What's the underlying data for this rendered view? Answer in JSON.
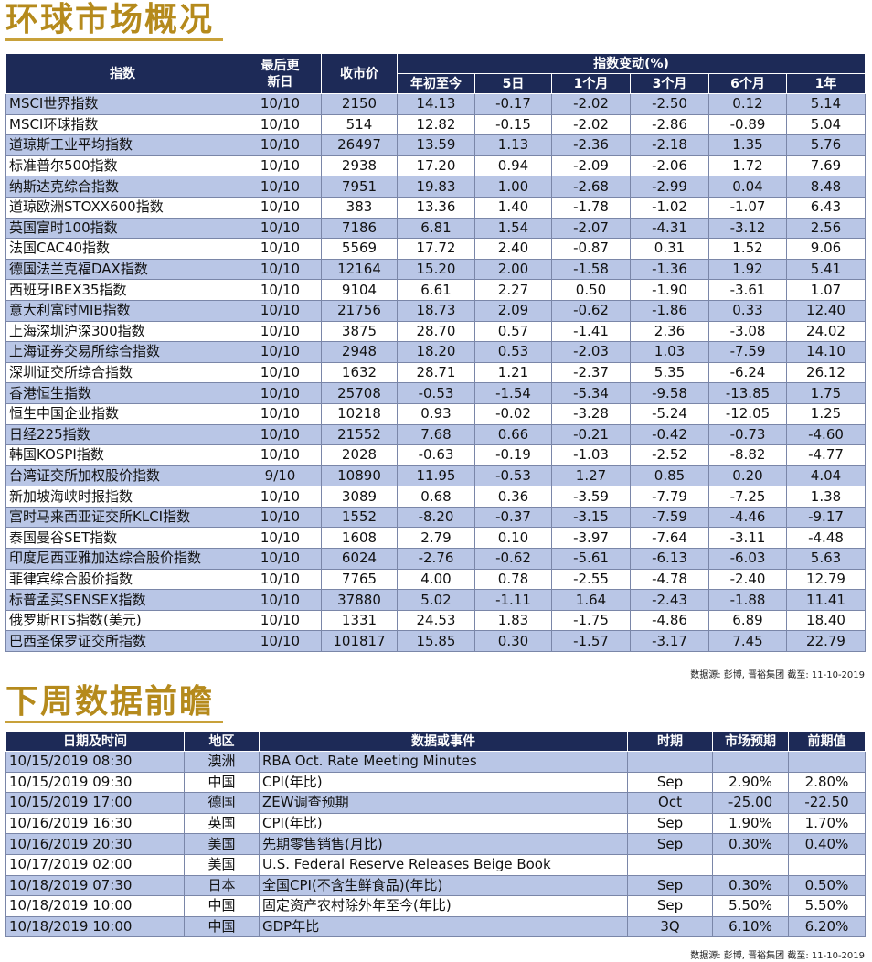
{
  "market": {
    "title": "环球市场概况",
    "headers": {
      "index": "指数",
      "last_update": "最后更新日",
      "close": "收市价",
      "change_group": "指数变动(%)",
      "periods": [
        "年初至今",
        "5日",
        "1个月",
        "3个月",
        "6个月",
        "1年"
      ]
    },
    "rows": [
      {
        "name": "MSCI世界指数",
        "date": "10/10",
        "close": "2150",
        "vals": [
          "14.13",
          "-0.17",
          "-2.02",
          "-2.50",
          "0.12",
          "5.14"
        ]
      },
      {
        "name": "MSCI环球指数",
        "date": "10/10",
        "close": "514",
        "vals": [
          "12.82",
          "-0.15",
          "-2.02",
          "-2.86",
          "-0.89",
          "5.04"
        ]
      },
      {
        "name": "道琼斯工业平均指数",
        "date": "10/10",
        "close": "26497",
        "vals": [
          "13.59",
          "1.13",
          "-2.36",
          "-2.18",
          "1.35",
          "5.76"
        ]
      },
      {
        "name": "标准普尔500指数",
        "date": "10/10",
        "close": "2938",
        "vals": [
          "17.20",
          "0.94",
          "-2.09",
          "-2.06",
          "1.72",
          "7.69"
        ]
      },
      {
        "name": "纳斯达克综合指数",
        "date": "10/10",
        "close": "7951",
        "vals": [
          "19.83",
          "1.00",
          "-2.68",
          "-2.99",
          "0.04",
          "8.48"
        ]
      },
      {
        "name": "道琼欧洲STOXX600指数",
        "date": "10/10",
        "close": "383",
        "vals": [
          "13.36",
          "1.40",
          "-1.78",
          "-1.02",
          "-1.07",
          "6.43"
        ]
      },
      {
        "name": "英国富时100指数",
        "date": "10/10",
        "close": "7186",
        "vals": [
          "6.81",
          "1.54",
          "-2.07",
          "-4.31",
          "-3.12",
          "2.56"
        ]
      },
      {
        "name": "法国CAC40指数",
        "date": "10/10",
        "close": "5569",
        "vals": [
          "17.72",
          "2.40",
          "-0.87",
          "0.31",
          "1.52",
          "9.06"
        ]
      },
      {
        "name": "德国法兰克福DAX指数",
        "date": "10/10",
        "close": "12164",
        "vals": [
          "15.20",
          "2.00",
          "-1.58",
          "-1.36",
          "1.92",
          "5.41"
        ]
      },
      {
        "name": "西班牙IBEX35指数",
        "date": "10/10",
        "close": "9104",
        "vals": [
          "6.61",
          "2.27",
          "0.50",
          "-1.90",
          "-3.61",
          "1.07"
        ]
      },
      {
        "name": "意大利富时MIB指数",
        "date": "10/10",
        "close": "21756",
        "vals": [
          "18.73",
          "2.09",
          "-0.62",
          "-1.86",
          "0.33",
          "12.40"
        ]
      },
      {
        "name": "上海深圳沪深300指数",
        "date": "10/10",
        "close": "3875",
        "vals": [
          "28.70",
          "0.57",
          "-1.41",
          "2.36",
          "-3.08",
          "24.02"
        ]
      },
      {
        "name": "上海证券交易所综合指数",
        "date": "10/10",
        "close": "2948",
        "vals": [
          "18.20",
          "0.53",
          "-2.03",
          "1.03",
          "-7.59",
          "14.10"
        ]
      },
      {
        "name": "深圳证交所综合指数",
        "date": "10/10",
        "close": "1632",
        "vals": [
          "28.71",
          "1.21",
          "-2.37",
          "5.35",
          "-6.24",
          "26.12"
        ]
      },
      {
        "name": "香港恒生指数",
        "date": "10/10",
        "close": "25708",
        "vals": [
          "-0.53",
          "-1.54",
          "-5.34",
          "-9.58",
          "-13.85",
          "1.75"
        ]
      },
      {
        "name": "恒生中国企业指数",
        "date": "10/10",
        "close": "10218",
        "vals": [
          "0.93",
          "-0.02",
          "-3.28",
          "-5.24",
          "-12.05",
          "1.25"
        ]
      },
      {
        "name": "日经225指数",
        "date": "10/10",
        "close": "21552",
        "vals": [
          "7.68",
          "0.66",
          "-0.21",
          "-0.42",
          "-0.73",
          "-4.60"
        ]
      },
      {
        "name": "韩国KOSPI指数",
        "date": "10/10",
        "close": "2028",
        "vals": [
          "-0.63",
          "-0.19",
          "-1.03",
          "-2.52",
          "-8.82",
          "-4.77"
        ]
      },
      {
        "name": "台湾证交所加权股价指数",
        "date": "9/10",
        "close": "10890",
        "vals": [
          "11.95",
          "-0.53",
          "1.27",
          "0.85",
          "0.20",
          "4.04"
        ]
      },
      {
        "name": "新加坡海峡时报指数",
        "date": "10/10",
        "close": "3089",
        "vals": [
          "0.68",
          "0.36",
          "-3.59",
          "-7.79",
          "-7.25",
          "1.38"
        ]
      },
      {
        "name": "富时马来西亚证交所KLCI指数",
        "date": "10/10",
        "close": "1552",
        "vals": [
          "-8.20",
          "-0.37",
          "-3.15",
          "-7.59",
          "-4.46",
          "-9.17"
        ]
      },
      {
        "name": "泰国曼谷SET指数",
        "date": "10/10",
        "close": "1608",
        "vals": [
          "2.79",
          "0.10",
          "-3.97",
          "-7.64",
          "-3.11",
          "-4.48"
        ]
      },
      {
        "name": "印度尼西亚雅加达综合股价指数",
        "date": "10/10",
        "close": "6024",
        "vals": [
          "-2.76",
          "-0.62",
          "-5.61",
          "-6.13",
          "-6.03",
          "5.63"
        ]
      },
      {
        "name": "菲律宾综合股价指数",
        "date": "10/10",
        "close": "7765",
        "vals": [
          "4.00",
          "0.78",
          "-2.55",
          "-4.78",
          "-2.40",
          "12.79"
        ]
      },
      {
        "name": "标普孟买SENSEX指数",
        "date": "10/10",
        "close": "37880",
        "vals": [
          "5.02",
          "-1.11",
          "1.64",
          "-2.43",
          "-1.88",
          "11.41"
        ]
      },
      {
        "name": "俄罗斯RTS指数(美元)",
        "date": "10/10",
        "close": "1331",
        "vals": [
          "24.53",
          "1.83",
          "-1.75",
          "-4.86",
          "6.89",
          "18.40"
        ]
      },
      {
        "name": "巴西圣保罗证交所指数",
        "date": "10/10",
        "close": "101817",
        "vals": [
          "15.85",
          "0.30",
          "-1.57",
          "-3.17",
          "7.45",
          "22.79"
        ]
      }
    ],
    "source": "数据源: 彭博, 晋裕集团 截至: 11-10-2019"
  },
  "calendar": {
    "title": "下周数据前瞻",
    "headers": {
      "datetime": "日期及时间",
      "region": "地区",
      "event": "数据或事件",
      "period": "时期",
      "forecast": "市场预期",
      "previous": "前期值"
    },
    "rows": [
      {
        "datetime": "10/15/2019 08:30",
        "region": "澳洲",
        "event": "RBA Oct. Rate Meeting Minutes",
        "period": "",
        "forecast": "",
        "previous": ""
      },
      {
        "datetime": "10/15/2019 09:30",
        "region": "中国",
        "event": "CPI(年比)",
        "period": "Sep",
        "forecast": "2.90%",
        "previous": "2.80%"
      },
      {
        "datetime": "10/15/2019 17:00",
        "region": "德国",
        "event": "ZEW调查预期",
        "period": "Oct",
        "forecast": "-25.00",
        "previous": "-22.50"
      },
      {
        "datetime": "10/16/2019 16:30",
        "region": "英国",
        "event": "CPI(年比)",
        "period": "Sep",
        "forecast": "1.90%",
        "previous": "1.70%"
      },
      {
        "datetime": "10/16/2019 20:30",
        "region": "美国",
        "event": "先期零售销售(月比)",
        "period": "Sep",
        "forecast": "0.30%",
        "previous": "0.40%"
      },
      {
        "datetime": "10/17/2019 02:00",
        "region": "美国",
        "event": "U.S. Federal Reserve Releases Beige Book",
        "period": "",
        "forecast": "",
        "previous": ""
      },
      {
        "datetime": "10/18/2019 07:30",
        "region": "日本",
        "event": "全国CPI(不含生鲜食品)(年比)",
        "period": "Sep",
        "forecast": "0.30%",
        "previous": "0.50%"
      },
      {
        "datetime": "10/18/2019 10:00",
        "region": "中国",
        "event": "固定资产农村除外年至今(年比)",
        "period": "Sep",
        "forecast": "5.50%",
        "previous": "5.50%"
      },
      {
        "datetime": "10/18/2019 10:00",
        "region": "中国",
        "event": "GDP年比",
        "period": "3Q",
        "forecast": "6.10%",
        "previous": "6.20%"
      }
    ],
    "source": "数据源: 彭博, 晋裕集团 截至: 11-10-2019"
  }
}
